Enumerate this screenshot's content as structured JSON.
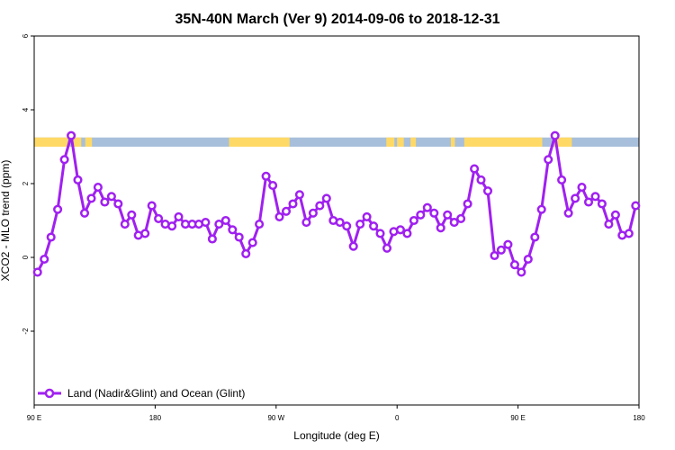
{
  "chart_data": {
    "type": "line",
    "title": "35N-40N March (Ver 9)   2014-09-06 to 2018-12-31",
    "xlabel": "Longitude (deg E)",
    "ylabel": "XCO2 - MLO trend (ppm)",
    "xlim": [
      90,
      540
    ],
    "ylim": [
      -4,
      6
    ],
    "x_ticks": [
      {
        "value": 90,
        "label": "90 E"
      },
      {
        "value": 180,
        "label": "180"
      },
      {
        "value": 270,
        "label": "90 W"
      },
      {
        "value": 360,
        "label": "0"
      },
      {
        "value": 450,
        "label": "90 E"
      },
      {
        "value": 540,
        "label": "180"
      }
    ],
    "y_ticks": [
      {
        "value": -2,
        "label": "-2"
      },
      {
        "value": 0,
        "label": "0"
      },
      {
        "value": 2,
        "label": "2"
      },
      {
        "value": 4,
        "label": "4"
      },
      {
        "value": 6,
        "label": "6"
      }
    ],
    "series": [
      {
        "name": "Land (Nadir&Glint) and Ocean (Glint)",
        "color": "#a020f0",
        "x": [
          92.5,
          97.5,
          102.5,
          107.5,
          112.5,
          117.5,
          122.5,
          127.5,
          132.5,
          137.5,
          142.5,
          147.5,
          152.5,
          157.5,
          162.5,
          167.5,
          172.5,
          177.5,
          182.5,
          187.5,
          192.5,
          197.5,
          202.5,
          207.5,
          212.5,
          217.5,
          222.5,
          227.5,
          232.5,
          237.5,
          242.5,
          247.5,
          252.5,
          257.5,
          262.5,
          267.5,
          272.5,
          277.5,
          282.5,
          287.5,
          292.5,
          297.5,
          302.5,
          307.5,
          312.5,
          317.5,
          322.5,
          327.5,
          332.5,
          337.5,
          342.5,
          347.5,
          352.5,
          357.5,
          362.5,
          367.5,
          372.5,
          377.5,
          382.5,
          387.5,
          392.5,
          397.5,
          402.5,
          407.5,
          412.5,
          417.5,
          422.5,
          427.5,
          432.5,
          437.5,
          442.5,
          447.5,
          452.5,
          457.5,
          462.5,
          467.5,
          472.5,
          477.5,
          482.5,
          487.5,
          492.5,
          497.5,
          502.5,
          507.5,
          512.5,
          517.5,
          522.5,
          527.5,
          532.5,
          537.5
        ],
        "y": [
          -0.4,
          -0.05,
          0.55,
          1.3,
          2.65,
          3.3,
          2.1,
          1.2,
          1.6,
          1.9,
          1.5,
          1.65,
          1.45,
          0.9,
          1.15,
          0.6,
          0.65,
          1.4,
          1.05,
          0.9,
          0.85,
          1.1,
          0.9,
          0.9,
          0.9,
          0.95,
          0.5,
          0.9,
          1.0,
          0.75,
          0.55,
          0.1,
          0.4,
          0.9,
          2.2,
          1.95,
          1.1,
          1.25,
          1.45,
          1.7,
          0.95,
          1.2,
          1.4,
          1.6,
          1.0,
          0.95,
          0.85,
          0.3,
          0.9,
          1.1,
          0.85,
          0.65,
          0.25,
          0.7,
          0.75,
          0.65,
          1.0,
          1.15,
          1.35,
          1.2,
          0.8,
          1.15,
          0.95,
          1.05,
          1.45,
          2.4,
          2.1,
          1.8,
          0.05,
          0.2,
          0.35,
          -0.2,
          -0.4,
          -0.05,
          0.55,
          1.3,
          2.65,
          3.3,
          2.1,
          1.2,
          1.6,
          1.9,
          1.5,
          1.65,
          1.45,
          0.9,
          1.15,
          0.6,
          0.65,
          1.4
        ]
      }
    ],
    "surface_bar": {
      "y_range": [
        3.0,
        3.25
      ],
      "colors": {
        "land": "#ffd966",
        "ocean": "#a8bfdb"
      },
      "land_intervals": [
        [
          90,
          115
        ],
        [
          119,
          125
        ],
        [
          128,
          133
        ],
        [
          235,
          280
        ],
        [
          352,
          358
        ],
        [
          360,
          365
        ],
        [
          370,
          374
        ],
        [
          400,
          403
        ],
        [
          410,
          468
        ],
        [
          477,
          490
        ]
      ]
    },
    "legend": {
      "position": "bottom-left",
      "label": "Land (Nadir&Glint) and Ocean (Glint)"
    },
    "grid": false
  }
}
